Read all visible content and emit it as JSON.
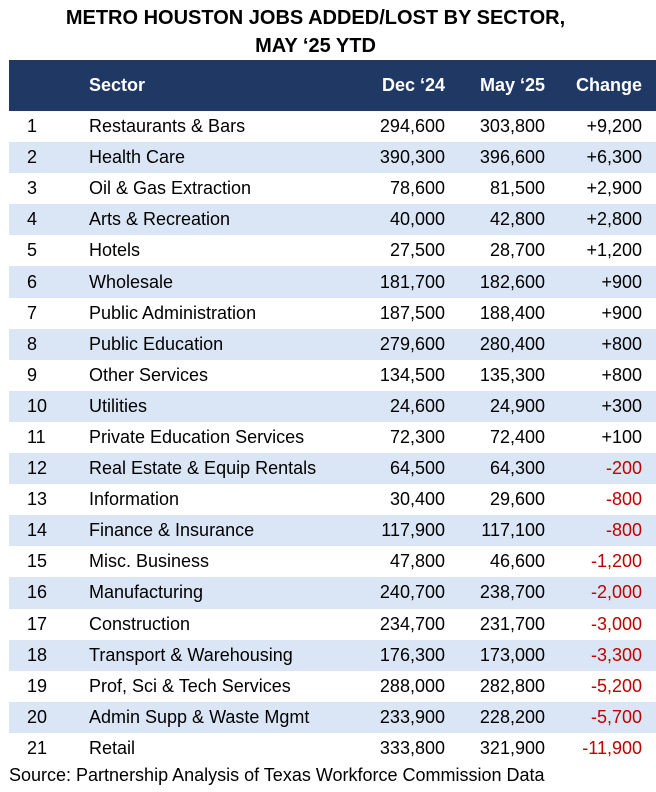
{
  "chart_data": {
    "type": "table",
    "title_line1": "METRO HOUSTON JOBS ADDED/LOST BY SECTOR,",
    "title_line2": "MAY ‘25 YTD",
    "columns": [
      "",
      "Sector",
      "Dec ‘24",
      "May ‘25",
      "Change"
    ],
    "rows": [
      {
        "rank": "1",
        "sector": "Restaurants & Bars",
        "dec24": "294,600",
        "may25": "303,800",
        "change": "+9,200"
      },
      {
        "rank": "2",
        "sector": "Health Care",
        "dec24": "390,300",
        "may25": "396,600",
        "change": "+6,300"
      },
      {
        "rank": "3",
        "sector": "Oil & Gas Extraction",
        "dec24": "78,600",
        "may25": "81,500",
        "change": "+2,900"
      },
      {
        "rank": "4",
        "sector": "Arts & Recreation",
        "dec24": "40,000",
        "may25": "42,800",
        "change": "+2,800"
      },
      {
        "rank": "5",
        "sector": "Hotels",
        "dec24": "27,500",
        "may25": "28,700",
        "change": "+1,200"
      },
      {
        "rank": "6",
        "sector": "Wholesale",
        "dec24": "181,700",
        "may25": "182,600",
        "change": "+900"
      },
      {
        "rank": "7",
        "sector": "Public Administration",
        "dec24": "187,500",
        "may25": "188,400",
        "change": "+900"
      },
      {
        "rank": "8",
        "sector": "Public Education",
        "dec24": "279,600",
        "may25": "280,400",
        "change": "+800"
      },
      {
        "rank": "9",
        "sector": "Other Services",
        "dec24": "134,500",
        "may25": "135,300",
        "change": "+800"
      },
      {
        "rank": "10",
        "sector": "Utilities",
        "dec24": "24,600",
        "may25": "24,900",
        "change": "+300"
      },
      {
        "rank": "11",
        "sector": "Private Education Services",
        "dec24": "72,300",
        "may25": "72,400",
        "change": "+100"
      },
      {
        "rank": "12",
        "sector": "Real Estate & Equip Rentals",
        "dec24": "64,500",
        "may25": "64,300",
        "change": "-200"
      },
      {
        "rank": "13",
        "sector": "Information",
        "dec24": "30,400",
        "may25": "29,600",
        "change": "-800"
      },
      {
        "rank": "14",
        "sector": "Finance & Insurance",
        "dec24": "117,900",
        "may25": "117,100",
        "change": "-800"
      },
      {
        "rank": "15",
        "sector": "Misc. Business",
        "dec24": "47,800",
        "may25": "46,600",
        "change": "-1,200"
      },
      {
        "rank": "16",
        "sector": "Manufacturing",
        "dec24": "240,700",
        "may25": "238,700",
        "change": "-2,000"
      },
      {
        "rank": "17",
        "sector": "Construction",
        "dec24": "234,700",
        "may25": "231,700",
        "change": "-3,000"
      },
      {
        "rank": "18",
        "sector": "Transport & Warehousing",
        "dec24": "176,300",
        "may25": "173,000",
        "change": "-3,300"
      },
      {
        "rank": "19",
        "sector": "Prof, Sci & Tech Services",
        "dec24": "288,000",
        "may25": "282,800",
        "change": "-5,200"
      },
      {
        "rank": "20",
        "sector": "Admin Supp & Waste Mgmt",
        "dec24": "233,900",
        "may25": "228,200",
        "change": "-5,700"
      },
      {
        "rank": "21",
        "sector": "Retail",
        "dec24": "333,800",
        "may25": "321,900",
        "change": "-11,900"
      }
    ],
    "source": "Source: Partnership Analysis of Texas Workforce Commission Data"
  },
  "colors": {
    "header_bg": "#1f3864",
    "header_text": "#ffffff",
    "shaded_row": "#dae6f5",
    "negative": "#c00000"
  }
}
